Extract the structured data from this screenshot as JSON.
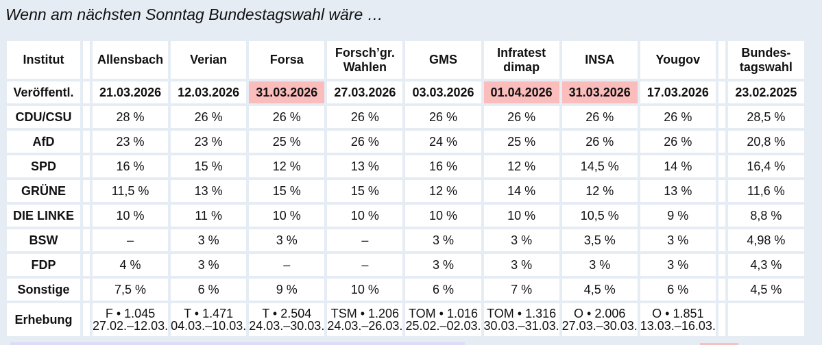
{
  "title": "Wenn am nächsten Sonntag Bundestagswahl wäre …",
  "colors": {
    "page_background": "#e6ecf4",
    "institute_link": "#0f0fa8",
    "highlight_date": "#fbbcbc",
    "election_result_text": "#5a5a5a"
  },
  "table": {
    "corner_label": "Institut",
    "institutes": [
      {
        "name": "Allensbach"
      },
      {
        "name": "Verian"
      },
      {
        "name": "Forsa"
      },
      {
        "name": "Forsch’gr.\nWahlen",
        "line1": "Forsch’gr.",
        "line2": "Wahlen"
      },
      {
        "name": "GMS"
      },
      {
        "name": "Infratest\ndimap",
        "line1": "Infratest",
        "line2": "dimap"
      },
      {
        "name": "INSA"
      },
      {
        "name": "Yougov"
      }
    ],
    "election_column": {
      "line1": "Bundes-",
      "line2": "tagswahl"
    },
    "published_label": "Veröffentl.",
    "published": [
      {
        "date": "21.03.2026",
        "highlight": false
      },
      {
        "date": "12.03.2026",
        "highlight": false
      },
      {
        "date": "31.03.2026",
        "highlight": true
      },
      {
        "date": "27.03.2026",
        "highlight": false
      },
      {
        "date": "03.03.2026",
        "highlight": false
      },
      {
        "date": "01.04.2026",
        "highlight": true
      },
      {
        "date": "31.03.2026",
        "highlight": true
      },
      {
        "date": "17.03.2026",
        "highlight": false
      }
    ],
    "election_date": "23.02.2025",
    "parties": [
      {
        "name": "CDU/CSU",
        "values": [
          "28 %",
          "26 %",
          "26 %",
          "26 %",
          "26 %",
          "26 %",
          "26 %",
          "26 %"
        ],
        "election": "28,5 %"
      },
      {
        "name": "AfD",
        "values": [
          "23 %",
          "23 %",
          "25 %",
          "26 %",
          "24 %",
          "25 %",
          "26 %",
          "26 %"
        ],
        "election": "20,8 %"
      },
      {
        "name": "SPD",
        "values": [
          "16 %",
          "15 %",
          "12 %",
          "13 %",
          "16 %",
          "12 %",
          "14,5 %",
          "14 %"
        ],
        "election": "16,4 %"
      },
      {
        "name": "GRÜNE",
        "values": [
          "11,5 %",
          "13 %",
          "15 %",
          "15 %",
          "12 %",
          "14 %",
          "12 %",
          "13 %"
        ],
        "election": "11,6 %"
      },
      {
        "name": "DIE LINKE",
        "values": [
          "10 %",
          "11 %",
          "10 %",
          "10 %",
          "10 %",
          "10 %",
          "10,5 %",
          "9 %"
        ],
        "election": "8,8 %"
      },
      {
        "name": "BSW",
        "values": [
          "–",
          "3 %",
          "3 %",
          "–",
          "3 %",
          "3 %",
          "3,5 %",
          "3 %"
        ],
        "election": "4,98 %"
      },
      {
        "name": "FDP",
        "values": [
          "4 %",
          "3 %",
          "–",
          "–",
          "3 %",
          "3 %",
          "3 %",
          "3 %"
        ],
        "election": "4,3 %"
      },
      {
        "name": "Sonstige",
        "values": [
          "7,5 %",
          "6 %",
          "9 %",
          "10 %",
          "6 %",
          "7 %",
          "4,5 %",
          "6 %"
        ],
        "election": "4,5 %"
      }
    ],
    "survey_label": "Erhebung",
    "survey": [
      {
        "line1": "F • 1.045",
        "line2": "27.02.–12.03."
      },
      {
        "line1": "T • 1.471",
        "line2": "04.03.–10.03."
      },
      {
        "line1": "T • 2.504",
        "line2": "24.03.–30.03."
      },
      {
        "line1": "TSM • 1.206",
        "line2": "24.03.–26.03."
      },
      {
        "line1": "TOM • 1.016",
        "line2": "25.02.–02.03."
      },
      {
        "line1": "TOM • 1.316",
        "line2": "30.03.–31.03."
      },
      {
        "line1": "O • 2.006",
        "line2": "27.03.–30.03."
      },
      {
        "line1": "O • 1.851",
        "line2": "13.03.–16.03."
      }
    ]
  }
}
